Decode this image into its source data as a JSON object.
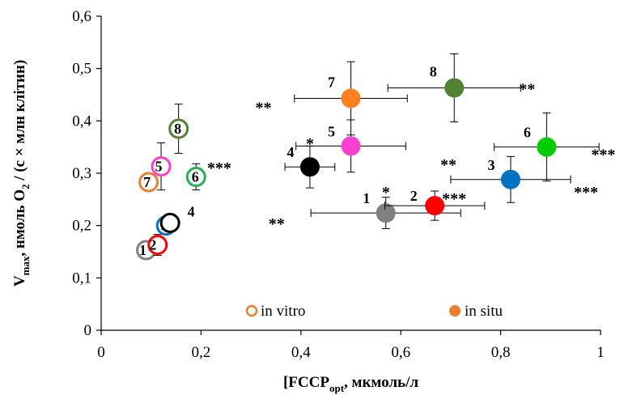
{
  "chart_data": {
    "type": "scatter",
    "xlabel_main": "[FCCP]",
    "xlabel_sub": "opt",
    "xlabel_unit": ", мкмоль/л",
    "ylabel_main": "V",
    "ylabel_sub": "max",
    "ylabel_mid": ", нмоль O",
    "ylabel_sub2": "2",
    "ylabel_end": " / (с × млн клітин)",
    "xlim": [
      0,
      1
    ],
    "ylim": [
      0,
      0.6
    ],
    "xticks": [
      0,
      0.2,
      0.4,
      0.6,
      0.8,
      1
    ],
    "xtick_labels": [
      "0",
      "0,2",
      "0,4",
      "0,6",
      "0,8",
      "1"
    ],
    "yticks": [
      0,
      0.1,
      0.2,
      0.3,
      0.4,
      0.5,
      0.6
    ],
    "ytick_labels": [
      "0",
      "0,1",
      "0,2",
      "0,3",
      "0,4",
      "0,5",
      "0,6"
    ],
    "grid": false,
    "legend": [
      {
        "label": "in vitro",
        "marker": "open",
        "color": "#ED7D31"
      },
      {
        "label": "in situ",
        "marker": "filled",
        "color": "#ED7D31"
      }
    ],
    "series": [
      {
        "name": "in vitro",
        "marker": "open",
        "points": [
          {
            "id": "1",
            "x": 0.09,
            "y": 0.153,
            "color": "#808080",
            "xerr": 0.005,
            "yerr": 0.008
          },
          {
            "id": "2",
            "x": 0.113,
            "y": 0.163,
            "color": "#FF0000",
            "xerr": 0.007,
            "yerr": 0.02
          },
          {
            "id": "3",
            "x": 0.13,
            "y": 0.2,
            "color": "#0070C0",
            "xerr": 0.005,
            "yerr": 0.008
          },
          {
            "id": "4",
            "x": 0.138,
            "y": 0.205,
            "color": "#000000",
            "xerr": 0.005,
            "yerr": 0.006
          },
          {
            "id": "5",
            "x": 0.12,
            "y": 0.313,
            "color": "#FF3FCF",
            "xerr": 0.006,
            "yerr": 0.045
          },
          {
            "id": "6",
            "x": 0.19,
            "y": 0.293,
            "color": "#22B14C",
            "xerr": 0.008,
            "yerr": 0.025
          },
          {
            "id": "7",
            "x": 0.095,
            "y": 0.283,
            "color": "#ED7D31",
            "xerr": 0.006,
            "yerr": 0.01
          },
          {
            "id": "8",
            "x": 0.155,
            "y": 0.385,
            "color": "#548235",
            "xerr": 0.013,
            "yerr": 0.047
          }
        ]
      },
      {
        "name": "in situ",
        "marker": "filled",
        "points": [
          {
            "id": "1",
            "x": 0.57,
            "y": 0.224,
            "color": "#808080",
            "xerr": 0.15,
            "yerr": 0.03,
            "stars_y": "*",
            "stars_x": "**"
          },
          {
            "id": "2",
            "x": 0.668,
            "y": 0.238,
            "color": "#FF0000",
            "xerr": 0.1,
            "yerr": 0.028,
            "stars_x": "***"
          },
          {
            "id": "3",
            "x": 0.82,
            "y": 0.288,
            "color": "#0070C0",
            "xerr": 0.12,
            "yerr": 0.044,
            "stars_y": "**",
            "stars_x": "***"
          },
          {
            "id": "4",
            "x": 0.418,
            "y": 0.312,
            "color": "#000000",
            "xerr": 0.05,
            "yerr": 0.04,
            "stars_y": "*",
            "stars_x": "***"
          },
          {
            "id": "5",
            "x": 0.5,
            "y": 0.352,
            "color": "#FF3FCF",
            "xerr": 0.11,
            "yerr": 0.05
          },
          {
            "id": "6",
            "x": 0.892,
            "y": 0.35,
            "color": "#00CC00",
            "xerr": 0.105,
            "yerr": 0.065,
            "stars_x": "***"
          },
          {
            "id": "7",
            "x": 0.5,
            "y": 0.443,
            "color": "#FF8020",
            "xerr": 0.113,
            "yerr": 0.07,
            "stars_x": "**"
          },
          {
            "id": "8",
            "x": 0.707,
            "y": 0.463,
            "color": "#548235",
            "xerr": 0.133,
            "yerr": 0.065,
            "stars_x": "**"
          }
        ]
      }
    ]
  }
}
